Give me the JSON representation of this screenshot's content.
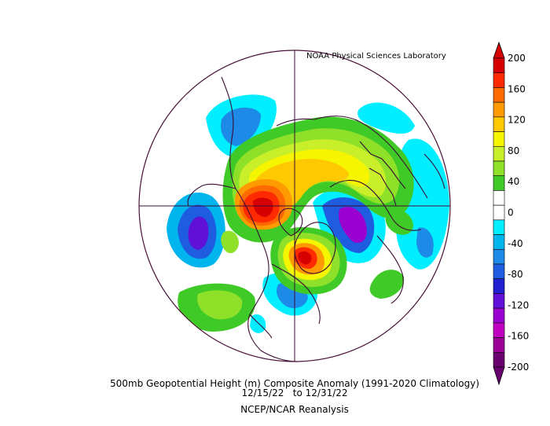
{
  "credit": "NOAA Physical Sciences Laboratory",
  "caption": {
    "line1": "500mb Geopotential Height (m) Composite Anomaly (1991-2020 Climatology)",
    "line2": "12/15/22   to 12/31/22",
    "line3": "NCEP/NCAR Reanalysis"
  },
  "colorbar": {
    "labels": [
      "200",
      "160",
      "120",
      "80",
      "40",
      "0",
      "-40",
      "-80",
      "-120",
      "-160",
      "-200"
    ],
    "colors": [
      "#d70000",
      "#ff2a00",
      "#ff6a00",
      "#ff9a00",
      "#ffc800",
      "#f5f500",
      "#c8ef2a",
      "#8ee028",
      "#3fca28",
      "#ffffff",
      "#ffffff",
      "#00eeff",
      "#00b4ee",
      "#1e8ae8",
      "#1e5ce0",
      "#2020d0",
      "#6010d8",
      "#9a00d0",
      "#c000c0",
      "#9a0096",
      "#6a0070"
    ]
  },
  "colors": {
    "frame": "#4a1038",
    "coast": "#3b0d34"
  }
}
